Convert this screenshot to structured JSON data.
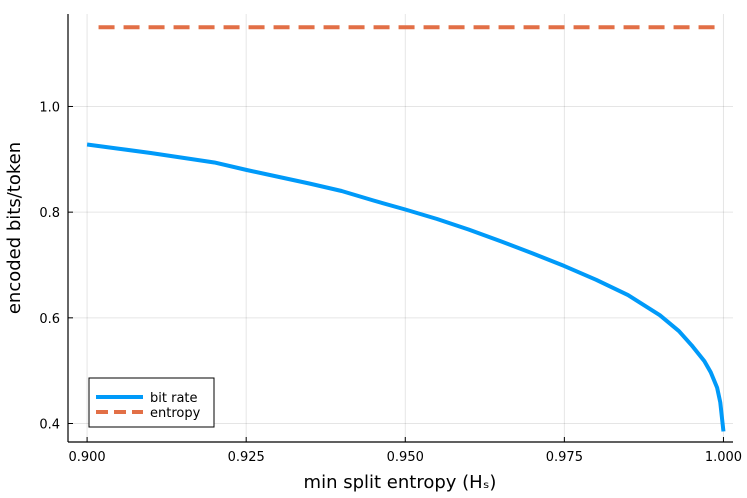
{
  "chart_data": {
    "type": "line",
    "xlabel": "min split entropy (Hₛ)",
    "ylabel": "encoded bits/token",
    "xlim": [
      0.897,
      1.0015
    ],
    "ylim": [
      0.365,
      1.175
    ],
    "x_ticks": [
      0.9,
      0.925,
      0.95,
      0.975,
      1.0
    ],
    "x_tick_labels": [
      "0.900",
      "0.925",
      "0.950",
      "0.975",
      "1.000"
    ],
    "y_ticks": [
      0.4,
      0.6,
      0.8,
      1.0
    ],
    "y_tick_labels": [
      "0.4",
      "0.6",
      "0.8",
      "1.0"
    ],
    "grid": true,
    "legend_position": "bottom-left",
    "series": [
      {
        "name": "bit rate",
        "color": "#009AF9",
        "style": "solid",
        "x": [
          0.9,
          0.905,
          0.91,
          0.915,
          0.92,
          0.925,
          0.93,
          0.935,
          0.94,
          0.945,
          0.95,
          0.955,
          0.96,
          0.965,
          0.97,
          0.975,
          0.98,
          0.985,
          0.99,
          0.993,
          0.995,
          0.997,
          0.998,
          0.999,
          0.9995,
          1.0
        ],
        "y": [
          0.928,
          0.92,
          0.912,
          0.903,
          0.894,
          0.88,
          0.867,
          0.854,
          0.84,
          0.822,
          0.805,
          0.787,
          0.767,
          0.745,
          0.722,
          0.698,
          0.672,
          0.643,
          0.605,
          0.575,
          0.548,
          0.518,
          0.497,
          0.468,
          0.44,
          0.385
        ]
      },
      {
        "name": "entropy",
        "color": "#E26F46",
        "style": "dashed",
        "x": [
          0.9018,
          1.0
        ],
        "y": [
          1.15,
          1.15
        ]
      }
    ]
  }
}
